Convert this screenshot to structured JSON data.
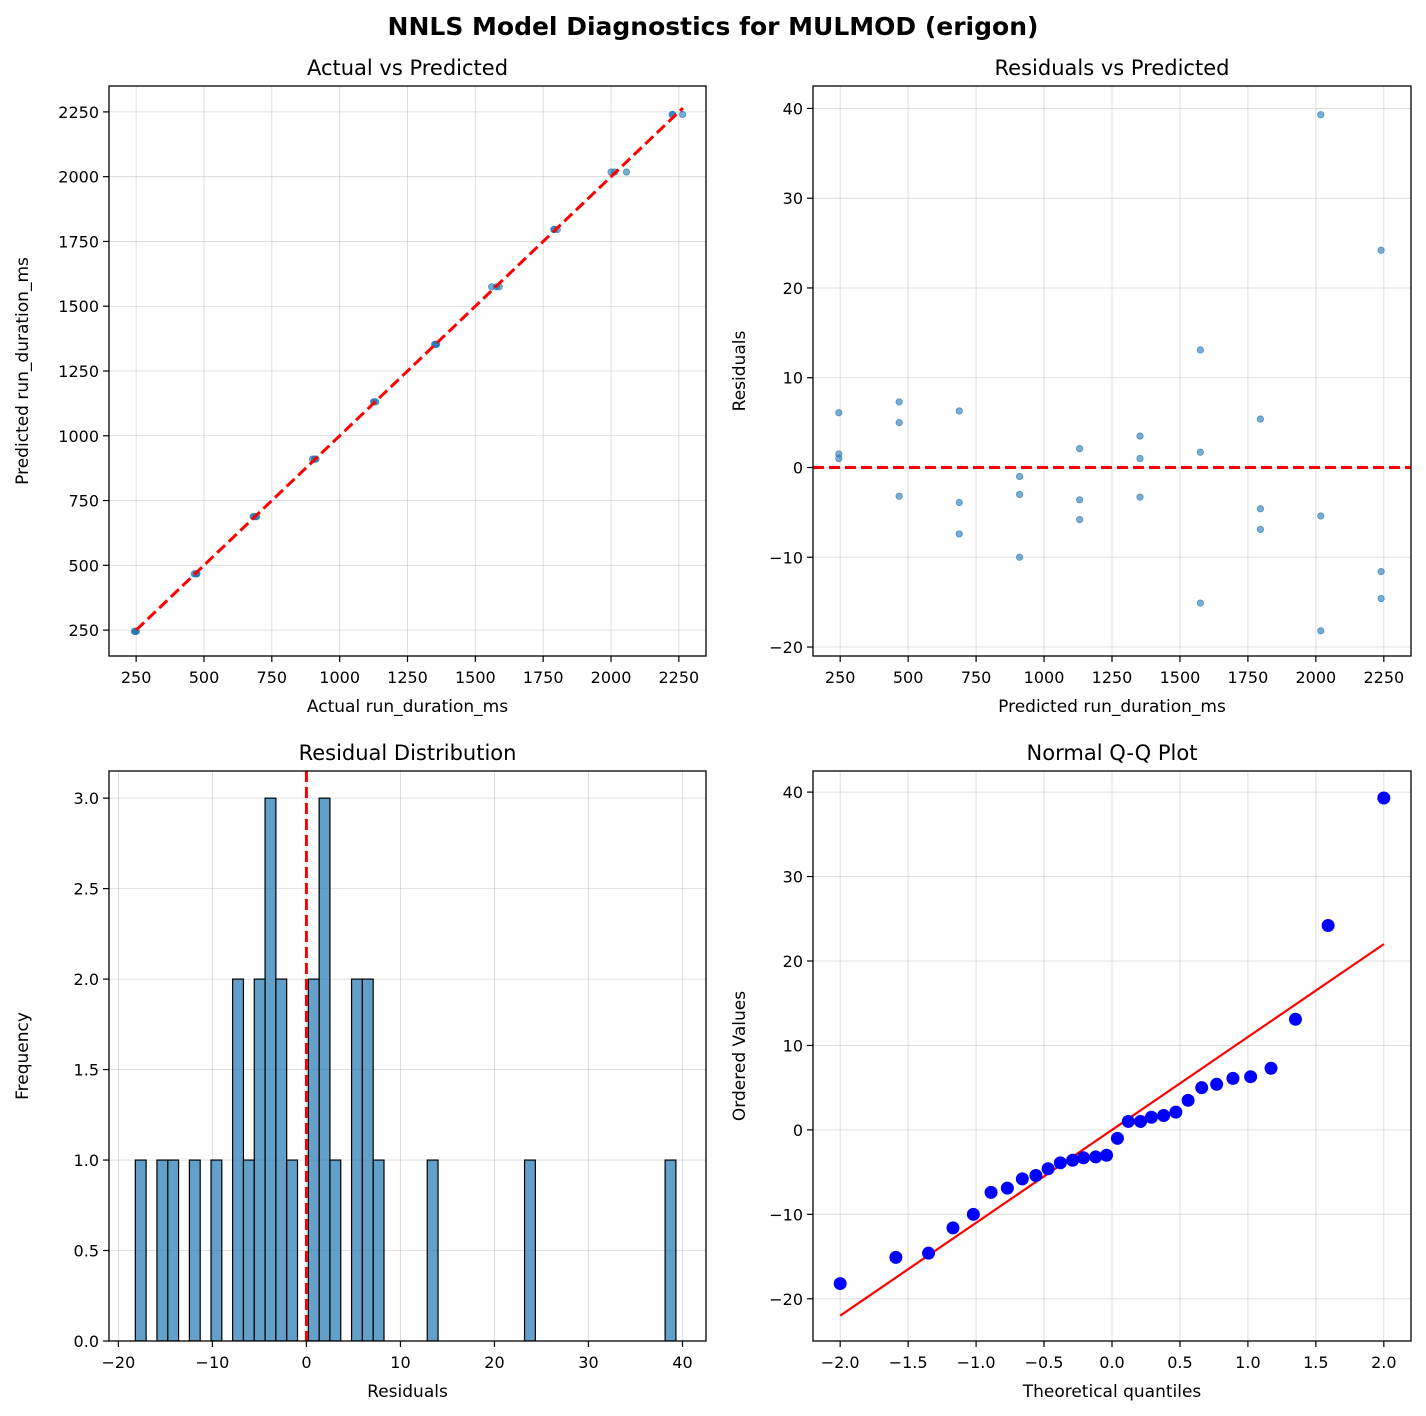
{
  "figure_title": "NNLS Model Diagnostics for MULMOD (erigon)",
  "colors": {
    "point": "#1f77b4",
    "reference": "#ff0000",
    "qq_point": "#0000ff",
    "grid": "#b0b0b0",
    "bar_fill": "#1f77b4",
    "bar_edge": "#000000"
  },
  "chart_data": [
    {
      "id": "actual_vs_predicted",
      "type": "scatter",
      "title": "Actual vs Predicted",
      "xlabel": "Actual run_duration_ms",
      "ylabel": "Predicted run_duration_ms",
      "xlim": [
        150,
        2350
      ],
      "ylim": [
        150,
        2350
      ],
      "xticks": [
        250,
        500,
        750,
        1000,
        1250,
        1500,
        1750,
        2000,
        2250
      ],
      "yticks": [
        250,
        500,
        750,
        1000,
        1250,
        1500,
        1750,
        2000,
        2250
      ],
      "grid": true,
      "reference_line": {
        "x": [
          250,
          2265
        ],
        "y": [
          250,
          2265
        ],
        "style": "dashed"
      },
      "points": [
        {
          "x": 251,
          "y": 245
        },
        {
          "x": 247,
          "y": 245
        },
        {
          "x": 246,
          "y": 245
        },
        {
          "x": 244,
          "y": 245
        },
        {
          "x": 474,
          "y": 467
        },
        {
          "x": 472,
          "y": 467
        },
        {
          "x": 464,
          "y": 467
        },
        {
          "x": 470,
          "y": 467
        },
        {
          "x": 694,
          "y": 688
        },
        {
          "x": 684,
          "y": 688
        },
        {
          "x": 681,
          "y": 688
        },
        {
          "x": 691,
          "y": 688
        },
        {
          "x": 908,
          "y": 910
        },
        {
          "x": 907,
          "y": 910
        },
        {
          "x": 900,
          "y": 910
        },
        {
          "x": 913,
          "y": 910
        },
        {
          "x": 1133,
          "y": 1131
        },
        {
          "x": 1127,
          "y": 1131
        },
        {
          "x": 1125,
          "y": 1131
        },
        {
          "x": 1357,
          "y": 1353
        },
        {
          "x": 1354,
          "y": 1353
        },
        {
          "x": 1350,
          "y": 1353
        },
        {
          "x": 1355,
          "y": 1353
        },
        {
          "x": 1588,
          "y": 1575
        },
        {
          "x": 1577,
          "y": 1575
        },
        {
          "x": 1560,
          "y": 1575
        },
        {
          "x": 1802,
          "y": 1796
        },
        {
          "x": 1791,
          "y": 1796
        },
        {
          "x": 1789,
          "y": 1796
        },
        {
          "x": 2057,
          "y": 2018
        },
        {
          "x": 2013,
          "y": 2018
        },
        {
          "x": 2000,
          "y": 2018
        },
        {
          "x": 2264,
          "y": 2240
        },
        {
          "x": 2228,
          "y": 2240
        },
        {
          "x": 2225,
          "y": 2240
        }
      ]
    },
    {
      "id": "residuals_vs_predicted",
      "type": "scatter",
      "title": "Residuals vs Predicted",
      "xlabel": "Predicted run_duration_ms",
      "ylabel": "Residuals",
      "xlim": [
        150,
        2350
      ],
      "ylim": [
        -21,
        42.5
      ],
      "xticks": [
        250,
        500,
        750,
        1000,
        1250,
        1500,
        1750,
        2000,
        2250
      ],
      "yticks": [
        -20,
        -10,
        0,
        10,
        20,
        30,
        40
      ],
      "grid": true,
      "reference_line": {
        "y": 0,
        "style": "dashed"
      },
      "points": [
        {
          "x": 245,
          "y": 6.1
        },
        {
          "x": 245,
          "y": 1.5
        },
        {
          "x": 245,
          "y": 1.0
        },
        {
          "x": 467,
          "y": 7.3
        },
        {
          "x": 467,
          "y": 5.0
        },
        {
          "x": 467,
          "y": -3.2
        },
        {
          "x": 688,
          "y": 6.3
        },
        {
          "x": 688,
          "y": -3.9
        },
        {
          "x": 688,
          "y": -7.4
        },
        {
          "x": 910,
          "y": -1.0
        },
        {
          "x": 910,
          "y": -3.0
        },
        {
          "x": 910,
          "y": -10.0
        },
        {
          "x": 1131,
          "y": 2.1
        },
        {
          "x": 1131,
          "y": -3.6
        },
        {
          "x": 1131,
          "y": -5.8
        },
        {
          "x": 1353,
          "y": 3.5
        },
        {
          "x": 1353,
          "y": 1.0
        },
        {
          "x": 1353,
          "y": -3.3
        },
        {
          "x": 1575,
          "y": 13.1
        },
        {
          "x": 1575,
          "y": 1.7
        },
        {
          "x": 1575,
          "y": -15.1
        },
        {
          "x": 1796,
          "y": 5.4
        },
        {
          "x": 1796,
          "y": -4.6
        },
        {
          "x": 1796,
          "y": -6.9
        },
        {
          "x": 2018,
          "y": 39.3
        },
        {
          "x": 2018,
          "y": -5.4
        },
        {
          "x": 2018,
          "y": -18.2
        },
        {
          "x": 2240,
          "y": 24.2
        },
        {
          "x": 2240,
          "y": -11.6
        },
        {
          "x": 2240,
          "y": -14.6
        }
      ]
    },
    {
      "id": "residual_distribution",
      "type": "bar",
      "title": "Residual Distribution",
      "xlabel": "Residuals",
      "ylabel": "Frequency",
      "xlim": [
        -21,
        42.5
      ],
      "ylim": [
        0,
        3.15
      ],
      "xticks": [
        -20,
        -10,
        0,
        10,
        20,
        30,
        40
      ],
      "yticks": [
        0.0,
        0.5,
        1.0,
        1.5,
        2.0,
        2.5,
        3.0
      ],
      "ytick_labels": [
        "0.0",
        "0.5",
        "1.0",
        "1.5",
        "2.0",
        "2.5",
        "3.0"
      ],
      "grid": true,
      "reference_line": {
        "x": 0,
        "style": "dashed"
      },
      "bin_start": -18.2,
      "bin_width": 1.15,
      "counts": [
        1,
        0,
        1,
        1,
        0,
        1,
        0,
        1,
        0,
        2,
        1,
        2,
        3,
        2,
        1,
        0,
        2,
        3,
        1,
        0,
        2,
        2,
        1,
        0,
        0,
        0,
        0,
        1,
        0,
        0,
        0,
        0,
        0,
        0,
        0,
        0,
        1,
        0,
        0,
        0,
        0,
        0,
        0,
        0,
        0,
        0,
        0,
        0,
        0,
        1
      ]
    },
    {
      "id": "normal_qq",
      "type": "scatter",
      "title": "Normal Q-Q Plot",
      "xlabel": "Theoretical quantiles",
      "ylabel": "Ordered Values",
      "xlim": [
        -2.2,
        2.2
      ],
      "ylim": [
        -25,
        42.5
      ],
      "xticks": [
        -2.0,
        -1.5,
        -1.0,
        -0.5,
        0.0,
        0.5,
        1.0,
        1.5,
        2.0
      ],
      "xtick_labels": [
        "−2.0",
        "−1.5",
        "−1.0",
        "−0.5",
        "0.0",
        "0.5",
        "1.0",
        "1.5",
        "2.0"
      ],
      "yticks": [
        -20,
        -10,
        0,
        10,
        20,
        30,
        40
      ],
      "grid": true,
      "fit_line": {
        "x": [
          -2.0,
          2.0
        ],
        "y": [
          -22.0,
          22.0
        ]
      },
      "points": [
        {
          "x": -2.0,
          "y": -18.2
        },
        {
          "x": -1.59,
          "y": -15.1
        },
        {
          "x": -1.35,
          "y": -14.6
        },
        {
          "x": -1.17,
          "y": -11.6
        },
        {
          "x": -1.02,
          "y": -10.0
        },
        {
          "x": -0.89,
          "y": -7.4
        },
        {
          "x": -0.77,
          "y": -6.9
        },
        {
          "x": -0.66,
          "y": -5.8
        },
        {
          "x": -0.56,
          "y": -5.4
        },
        {
          "x": -0.47,
          "y": -4.6
        },
        {
          "x": -0.38,
          "y": -3.9
        },
        {
          "x": -0.29,
          "y": -3.6
        },
        {
          "x": -0.21,
          "y": -3.3
        },
        {
          "x": -0.12,
          "y": -3.2
        },
        {
          "x": -0.04,
          "y": -3.0
        },
        {
          "x": 0.04,
          "y": -1.0
        },
        {
          "x": 0.12,
          "y": 1.0
        },
        {
          "x": 0.21,
          "y": 1.0
        },
        {
          "x": 0.29,
          "y": 1.5
        },
        {
          "x": 0.38,
          "y": 1.7
        },
        {
          "x": 0.47,
          "y": 2.1
        },
        {
          "x": 0.56,
          "y": 3.5
        },
        {
          "x": 0.66,
          "y": 5.0
        },
        {
          "x": 0.77,
          "y": 5.4
        },
        {
          "x": 0.89,
          "y": 6.1
        },
        {
          "x": 1.02,
          "y": 6.3
        },
        {
          "x": 1.17,
          "y": 7.3
        },
        {
          "x": 1.35,
          "y": 13.1
        },
        {
          "x": 1.59,
          "y": 24.2
        },
        {
          "x": 2.0,
          "y": 39.3
        }
      ]
    }
  ]
}
